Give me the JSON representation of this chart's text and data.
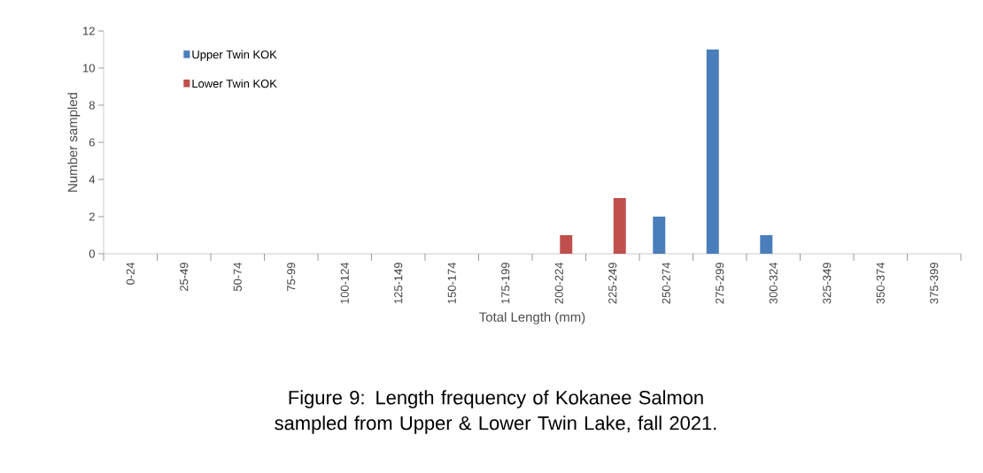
{
  "chart_data": {
    "type": "bar",
    "xlabel": "Total Length (mm)",
    "ylabel": "Number sampled",
    "categories": [
      "0-24",
      "25-49",
      "50-74",
      "75-99",
      "100-124",
      "125-149",
      "150-174",
      "175-199",
      "200-224",
      "225-249",
      "250-274",
      "275-299",
      "300-324",
      "325-349",
      "350-374",
      "375-399"
    ],
    "series": [
      {
        "name": "Upper Twin KOK",
        "color": "#4a7ebb",
        "values": [
          0,
          0,
          0,
          0,
          0,
          0,
          0,
          0,
          0,
          0,
          2,
          11,
          1,
          0,
          0,
          0
        ]
      },
      {
        "name": "Lower Twin KOK",
        "color": "#c0504d",
        "values": [
          0,
          0,
          0,
          0,
          0,
          0,
          0,
          0,
          1,
          3,
          0,
          0,
          0,
          0,
          0,
          0
        ]
      }
    ],
    "ylim": [
      0,
      12
    ],
    "yticks": [
      0,
      2,
      4,
      6,
      8,
      10,
      12
    ],
    "legend": "top left",
    "grid": false,
    "annotations": [
      "Figure 9: Length frequency of Kokanee Salmon sampled from Upper & Lower Twin Lake, fall 2021."
    ]
  }
}
